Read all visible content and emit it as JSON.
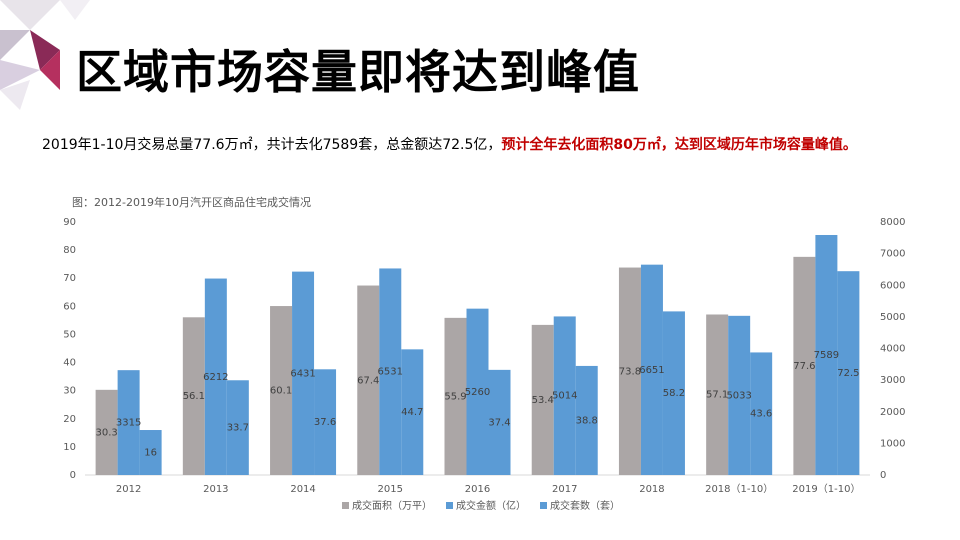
{
  "title": "区域市场容量即将达到峰值",
  "summary": {
    "text": "2019年1-10月交易总量77.6万㎡，共计去化7589套，总金额达72.5亿，",
    "highlight": "预计全年去化面积80万㎡，达到区域历年市场容量峰值。"
  },
  "chart_data": {
    "type": "bar",
    "title": "图：2012-2019年10月汽开区商品住宅成交情况",
    "categories": [
      "2012",
      "2013",
      "2014",
      "2015",
      "2016",
      "2017",
      "2018",
      "2018（1-10）",
      "2019（1-10）"
    ],
    "series": [
      {
        "name": "成交面积（万平）",
        "color": "#aba6a6",
        "values": [
          30.3,
          56.1,
          60.1,
          67.4,
          55.9,
          53.4,
          73.8,
          57.1,
          77.6
        ]
      },
      {
        "name": "成交金额（亿）",
        "color": "#5b9bd5",
        "values": [
          16,
          33.7,
          37.6,
          44.7,
          37.4,
          38.8,
          58.2,
          43.6,
          72.5
        ]
      },
      {
        "name": "成交套数（套）",
        "color": "#5b9bd5",
        "axis": "y2",
        "values": [
          3315,
          6212,
          6431,
          6531,
          5260,
          5014,
          6651,
          5033,
          7589
        ]
      }
    ],
    "ylim": [
      0,
      90
    ],
    "yticks": [
      0,
      10,
      20,
      30,
      40,
      50,
      60,
      70,
      80,
      90
    ],
    "y2lim": [
      0,
      8000
    ],
    "y2ticks": [
      0,
      1000,
      2000,
      3000,
      4000,
      5000,
      6000,
      7000,
      8000
    ]
  }
}
